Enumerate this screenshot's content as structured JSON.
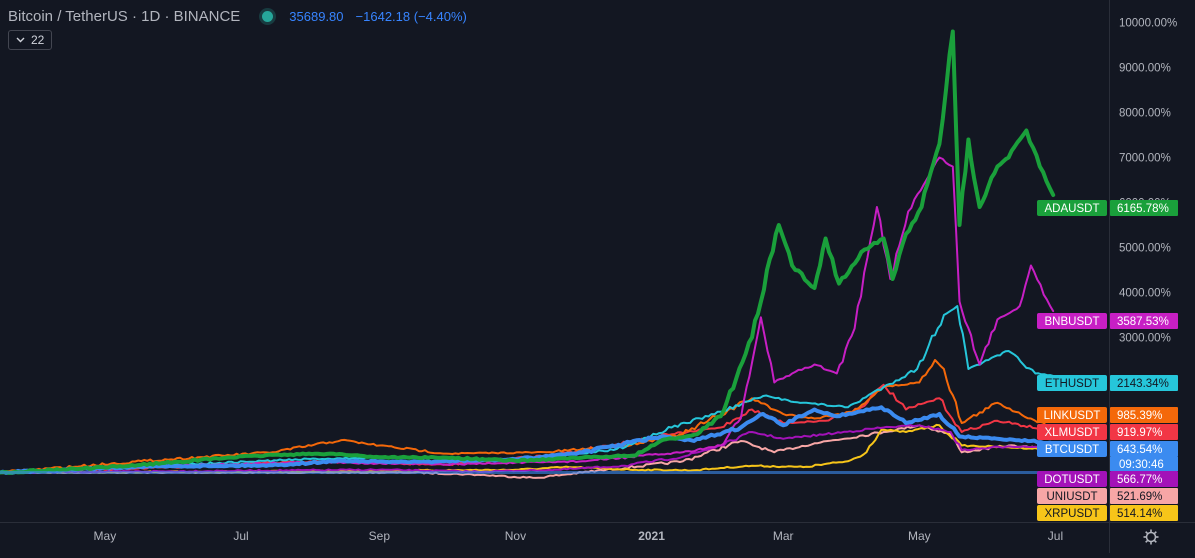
{
  "header": {
    "symbol_title": "Bitcoin / TetherUS · 1D · BINANCE",
    "price": "35689.80",
    "change": "−1642.18 (−4.40%)"
  },
  "interval_badge": {
    "label": "22"
  },
  "colors": {
    "background": "#131722",
    "grid": "#1e2230",
    "axis_text": "#b2b5be",
    "ADAUSDT": "#1aa03b",
    "BNBUSDT": "#c71fc4",
    "ETHUSDT": "#26c6da",
    "LINKUSDT": "#f4680a",
    "XLMUSDT": "#f23645",
    "BTCUSDT": "#3b8bf0",
    "DOTUSDT": "#a312b8",
    "UNIUSDT": "#f7a6a6",
    "XRPUSDT": "#f7c519"
  },
  "icons": {
    "interval": "chevron-down-icon",
    "settings": "gear-icon"
  },
  "chart_data": {
    "type": "line",
    "title": "Bitcoin / TetherUS · 1D · BINANCE",
    "y_scale": "percent change from first bar",
    "ylim": [
      -1100,
      10500
    ],
    "y_ticks": [
      "10000.00%",
      "9000.00%",
      "8000.00%",
      "7000.00%",
      "6000.00%",
      "5000.00%",
      "4000.00%",
      "3000.00%"
    ],
    "y_tick_values": [
      10000,
      9000,
      8000,
      7000,
      6000,
      5000,
      4000,
      3000
    ],
    "x_range": [
      "2020-03-15",
      "2021-07-25"
    ],
    "x_ticks": [
      {
        "date": "2020-05-01",
        "label": "May"
      },
      {
        "date": "2020-07-01",
        "label": "Jul"
      },
      {
        "date": "2020-09-01",
        "label": "Sep"
      },
      {
        "date": "2020-11-01",
        "label": "Nov"
      },
      {
        "date": "2021-01-01",
        "label": "2021"
      },
      {
        "date": "2021-03-01",
        "label": "Mar"
      },
      {
        "date": "2021-05-01",
        "label": "May"
      },
      {
        "date": "2021-07-01",
        "label": "Jul"
      }
    ],
    "grid": false,
    "series": [
      {
        "name": "ADAUSDT",
        "label": "6165.78%",
        "last": 6165.78,
        "width": 4,
        "points": [
          [
            "2020-03-15",
            0
          ],
          [
            "2020-05-01",
            110
          ],
          [
            "2020-06-01",
            230
          ],
          [
            "2020-06-25",
            330
          ],
          [
            "2020-07-15",
            390
          ],
          [
            "2020-08-10",
            420
          ],
          [
            "2020-09-01",
            340
          ],
          [
            "2020-10-01",
            330
          ],
          [
            "2020-11-01",
            260
          ],
          [
            "2020-12-01",
            330
          ],
          [
            "2020-12-25",
            380
          ],
          [
            "2021-01-05",
            700
          ],
          [
            "2021-01-20",
            840
          ],
          [
            "2021-02-01",
            1250
          ],
          [
            "2021-02-08",
            2100
          ],
          [
            "2021-02-15",
            3000
          ],
          [
            "2021-02-27",
            5500
          ],
          [
            "2021-03-05",
            4600
          ],
          [
            "2021-03-15",
            4100
          ],
          [
            "2021-03-20",
            5200
          ],
          [
            "2021-03-26",
            4200
          ],
          [
            "2021-04-05",
            4900
          ],
          [
            "2021-04-15",
            5200
          ],
          [
            "2021-04-19",
            4300
          ],
          [
            "2021-04-25",
            5300
          ],
          [
            "2021-05-02",
            5900
          ],
          [
            "2021-05-10",
            7300
          ],
          [
            "2021-05-16",
            9800
          ],
          [
            "2021-05-19",
            5500
          ],
          [
            "2021-05-23",
            7400
          ],
          [
            "2021-05-28",
            5900
          ],
          [
            "2021-06-05",
            6800
          ],
          [
            "2021-06-10",
            7000
          ],
          [
            "2021-06-18",
            7600
          ],
          [
            "2021-06-24",
            6800
          ],
          [
            "2021-06-30",
            6165.78
          ]
        ]
      },
      {
        "name": "BNBUSDT",
        "label": "3587.53%",
        "last": 3587.53,
        "width": 2,
        "points": [
          [
            "2020-03-15",
            0
          ],
          [
            "2020-06-01",
            150
          ],
          [
            "2020-08-01",
            230
          ],
          [
            "2020-10-01",
            180
          ],
          [
            "2020-12-01",
            250
          ],
          [
            "2021-01-15",
            450
          ],
          [
            "2021-02-01",
            600
          ],
          [
            "2021-02-10",
            1200
          ],
          [
            "2021-02-19",
            3450
          ],
          [
            "2021-02-25",
            2000
          ],
          [
            "2021-03-05",
            2200
          ],
          [
            "2021-03-15",
            2400
          ],
          [
            "2021-03-25",
            2200
          ],
          [
            "2021-04-02",
            3200
          ],
          [
            "2021-04-12",
            5900
          ],
          [
            "2021-04-18",
            4300
          ],
          [
            "2021-04-26",
            5800
          ],
          [
            "2021-05-03",
            6400
          ],
          [
            "2021-05-10",
            7000
          ],
          [
            "2021-05-16",
            6800
          ],
          [
            "2021-05-19",
            3800
          ],
          [
            "2021-05-28",
            2400
          ],
          [
            "2021-06-05",
            3400
          ],
          [
            "2021-06-15",
            3700
          ],
          [
            "2021-06-20",
            4600
          ],
          [
            "2021-06-30",
            3587.53
          ]
        ]
      },
      {
        "name": "ETHUSDT",
        "label": "2143.34%",
        "last": 2143.34,
        "width": 2,
        "points": [
          [
            "2020-03-15",
            0
          ],
          [
            "2020-06-01",
            170
          ],
          [
            "2020-08-01",
            300
          ],
          [
            "2020-09-10",
            340
          ],
          [
            "2020-11-01",
            280
          ],
          [
            "2020-12-15",
            500
          ],
          [
            "2021-01-10",
            1000
          ],
          [
            "2021-02-01",
            1350
          ],
          [
            "2021-02-20",
            1700
          ],
          [
            "2021-03-10",
            1550
          ],
          [
            "2021-03-30",
            1450
          ],
          [
            "2021-04-15",
            1900
          ],
          [
            "2021-04-30",
            2300
          ],
          [
            "2021-05-12",
            3500
          ],
          [
            "2021-05-18",
            3700
          ],
          [
            "2021-05-23",
            2300
          ],
          [
            "2021-06-01",
            2500
          ],
          [
            "2021-06-10",
            2700
          ],
          [
            "2021-06-22",
            2200
          ],
          [
            "2021-06-30",
            2143.34
          ]
        ]
      },
      {
        "name": "LINKUSDT",
        "label": "985.39%",
        "last": 985.39,
        "width": 2,
        "points": [
          [
            "2020-03-15",
            0
          ],
          [
            "2020-05-20",
            260
          ],
          [
            "2020-07-15",
            450
          ],
          [
            "2020-08-15",
            720
          ],
          [
            "2020-09-01",
            600
          ],
          [
            "2020-10-01",
            420
          ],
          [
            "2020-11-15",
            450
          ],
          [
            "2020-12-20",
            600
          ],
          [
            "2021-01-15",
            850
          ],
          [
            "2021-02-15",
            1650
          ],
          [
            "2021-03-01",
            1300
          ],
          [
            "2021-03-15",
            1200
          ],
          [
            "2021-04-01",
            1350
          ],
          [
            "2021-04-15",
            1900
          ],
          [
            "2021-05-01",
            2000
          ],
          [
            "2021-05-08",
            2500
          ],
          [
            "2021-05-12",
            2300
          ],
          [
            "2021-05-20",
            1100
          ],
          [
            "2021-06-05",
            1550
          ],
          [
            "2021-06-20",
            1200
          ],
          [
            "2021-06-30",
            985.39
          ]
        ]
      },
      {
        "name": "XLMUSDT",
        "label": "919.97%",
        "last": 919.97,
        "width": 2,
        "points": [
          [
            "2020-03-15",
            0
          ],
          [
            "2020-06-01",
            120
          ],
          [
            "2020-08-01",
            250
          ],
          [
            "2020-10-01",
            170
          ],
          [
            "2020-11-20",
            400
          ],
          [
            "2021-01-10",
            850
          ],
          [
            "2021-02-01",
            1000
          ],
          [
            "2021-02-15",
            1400
          ],
          [
            "2021-03-01",
            1100
          ],
          [
            "2021-03-20",
            1150
          ],
          [
            "2021-04-05",
            1450
          ],
          [
            "2021-04-15",
            1950
          ],
          [
            "2021-04-25",
            1400
          ],
          [
            "2021-05-10",
            1650
          ],
          [
            "2021-05-20",
            900
          ],
          [
            "2021-06-05",
            1150
          ],
          [
            "2021-06-30",
            919.97
          ]
        ]
      },
      {
        "name": "BTCUSDT",
        "label": "643.54%",
        "last": 643.54,
        "width": 4,
        "points": [
          [
            "2020-03-15",
            0
          ],
          [
            "2020-05-15",
            130
          ],
          [
            "2020-07-15",
            160
          ],
          [
            "2020-08-15",
            260
          ],
          [
            "2020-09-15",
            230
          ],
          [
            "2020-11-01",
            290
          ],
          [
            "2020-12-01",
            450
          ],
          [
            "2021-01-05",
            800
          ],
          [
            "2021-01-20",
            700
          ],
          [
            "2021-02-10",
            1000
          ],
          [
            "2021-02-20",
            1300
          ],
          [
            "2021-03-01",
            1050
          ],
          [
            "2021-03-15",
            1400
          ],
          [
            "2021-03-25",
            1250
          ],
          [
            "2021-04-14",
            1450
          ],
          [
            "2021-04-25",
            1100
          ],
          [
            "2021-05-10",
            1300
          ],
          [
            "2021-05-19",
            800
          ],
          [
            "2021-06-05",
            750
          ],
          [
            "2021-06-20",
            700
          ],
          [
            "2021-06-30",
            643.54
          ]
        ]
      },
      {
        "name": "DOTUSDT",
        "label": "566.77%",
        "last": 566.77,
        "width": 2,
        "points": [
          [
            "2020-03-15",
            0
          ],
          [
            "2020-09-01",
            60
          ],
          [
            "2020-10-15",
            20
          ],
          [
            "2020-11-20",
            60
          ],
          [
            "2020-12-20",
            150
          ],
          [
            "2021-01-15",
            350
          ],
          [
            "2021-02-01",
            600
          ],
          [
            "2021-02-15",
            900
          ],
          [
            "2021-03-01",
            750
          ],
          [
            "2021-03-20",
            850
          ],
          [
            "2021-04-15",
            1000
          ],
          [
            "2021-05-01",
            1050
          ],
          [
            "2021-05-15",
            900
          ],
          [
            "2021-05-20",
            500
          ],
          [
            "2021-06-10",
            580
          ],
          [
            "2021-06-30",
            566.77
          ]
        ]
      },
      {
        "name": "UNIUSDT",
        "label": "521.69%",
        "last": 521.69,
        "width": 2,
        "points": [
          [
            "2020-03-15",
            0
          ],
          [
            "2020-09-17",
            0
          ],
          [
            "2020-10-15",
            -50
          ],
          [
            "2020-11-10",
            -120
          ],
          [
            "2020-12-01",
            0
          ],
          [
            "2021-01-15",
            250
          ],
          [
            "2021-02-10",
            700
          ],
          [
            "2021-02-25",
            450
          ],
          [
            "2021-03-15",
            650
          ],
          [
            "2021-04-15",
            900
          ],
          [
            "2021-05-01",
            1050
          ],
          [
            "2021-05-15",
            850
          ],
          [
            "2021-05-20",
            450
          ],
          [
            "2021-06-10",
            600
          ],
          [
            "2021-06-30",
            521.69
          ]
        ]
      },
      {
        "name": "XRPUSDT",
        "label": "514.14%",
        "last": 514.14,
        "width": 2,
        "points": [
          [
            "2020-03-15",
            0
          ],
          [
            "2020-07-01",
            20
          ],
          [
            "2020-09-01",
            40
          ],
          [
            "2020-11-01",
            60
          ],
          [
            "2020-11-25",
            120
          ],
          [
            "2020-12-25",
            60
          ],
          [
            "2021-01-20",
            50
          ],
          [
            "2021-02-01",
            100
          ],
          [
            "2021-02-15",
            150
          ],
          [
            "2021-03-10",
            120
          ],
          [
            "2021-03-30",
            250
          ],
          [
            "2021-04-06",
            400
          ],
          [
            "2021-04-14",
            950
          ],
          [
            "2021-04-25",
            900
          ],
          [
            "2021-05-10",
            1050
          ],
          [
            "2021-05-20",
            600
          ],
          [
            "2021-06-10",
            560
          ],
          [
            "2021-06-30",
            514.14
          ]
        ]
      }
    ],
    "price_label": {
      "name": "BTCUSDT",
      "time": "09:30:46"
    }
  }
}
